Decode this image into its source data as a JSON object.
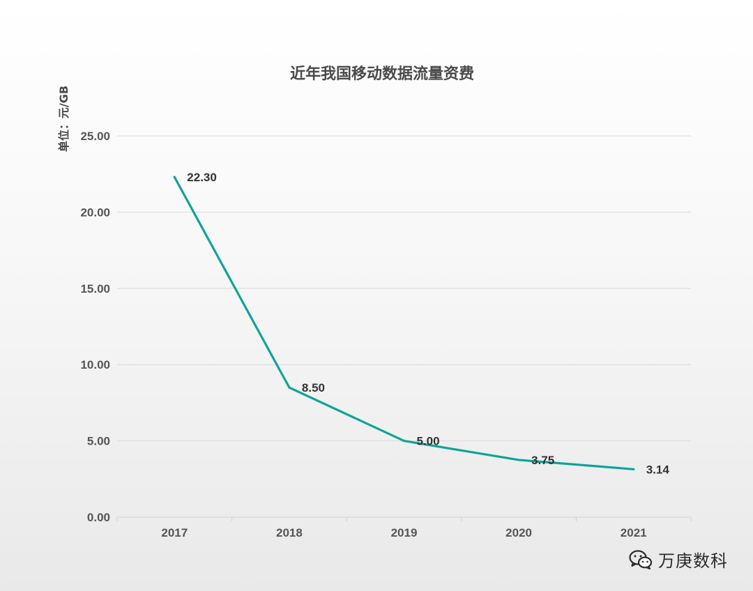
{
  "chart_data": {
    "type": "line",
    "title": "近年我国移动数据流量资费",
    "xlabel": "",
    "ylabel": "单位：元/GB",
    "categories": [
      "2017",
      "2018",
      "2019",
      "2020",
      "2021"
    ],
    "series": [
      {
        "values": [
          22.3,
          8.5,
          5.0,
          3.75,
          3.14
        ],
        "labels": [
          "22.30",
          "8.50",
          "5.00",
          "3.75",
          "3.14"
        ],
        "color": "#0fa39a"
      }
    ],
    "ylim": [
      0,
      25
    ],
    "yticks": [
      0,
      5,
      10,
      15,
      20,
      25
    ],
    "ytick_labels": [
      "0.00",
      "5.00",
      "10.00",
      "15.00",
      "20.00",
      "25.00"
    ],
    "grid": true,
    "legend": "none"
  },
  "watermark": {
    "icon": "wechat-icon",
    "text": "万庚数科"
  }
}
